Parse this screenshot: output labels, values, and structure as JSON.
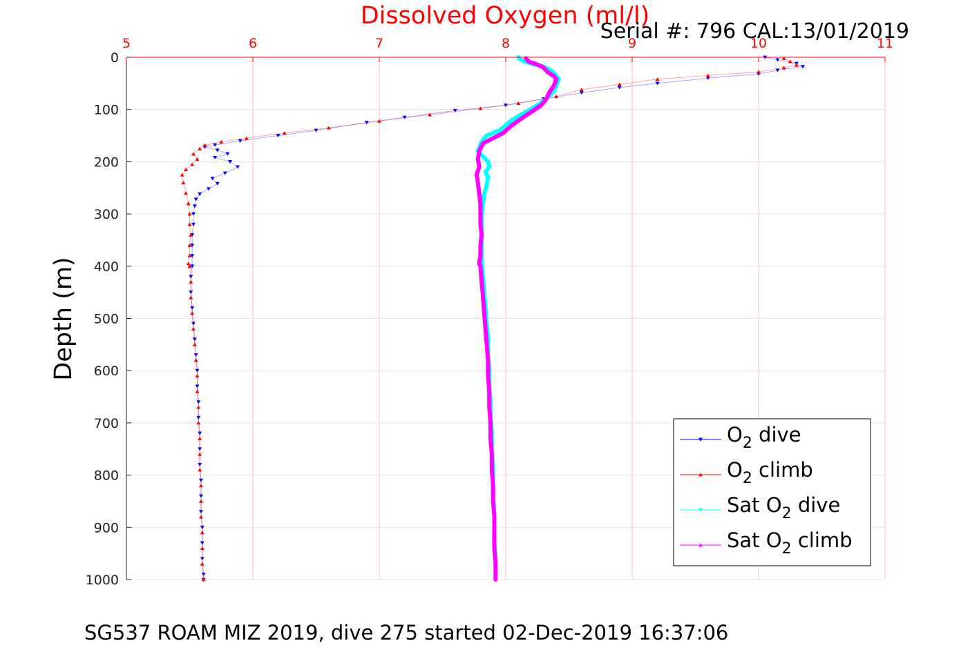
{
  "chart_data": {
    "type": "scatter",
    "title": "Dissolved Oxygen (ml/l)",
    "subtitle": "Serial #: 796  CAL:13/01/2019",
    "xlabel": "",
    "ylabel": "Depth (m)",
    "caption": "SG537 ROAM MIZ 2019, dive 275 started 02-Dec-2019 16:37:06",
    "xlim": [
      5,
      11
    ],
    "ylim": [
      1000,
      0
    ],
    "x_ticks": [
      "5",
      "6",
      "7",
      "8",
      "9",
      "10",
      "11"
    ],
    "y_ticks": [
      "0",
      "100",
      "200",
      "300",
      "400",
      "500",
      "600",
      "700",
      "800",
      "900",
      "1000"
    ],
    "x_axis_location": "top",
    "y_reversed": true,
    "grid": true,
    "legend_position": "bottom-right",
    "series": [
      {
        "label_text": "O",
        "label_sub": "2",
        "label_suffix": " dive",
        "color": "#0000ff",
        "marker": "down-triangle",
        "points": [
          [
            10.05,
            0
          ],
          [
            10.15,
            5
          ],
          [
            10.3,
            12
          ],
          [
            10.35,
            18
          ],
          [
            10.15,
            25
          ],
          [
            10.0,
            32
          ],
          [
            9.6,
            40
          ],
          [
            9.2,
            50
          ],
          [
            8.9,
            58
          ],
          [
            8.6,
            68
          ],
          [
            8.3,
            80
          ],
          [
            8.0,
            92
          ],
          [
            7.6,
            102
          ],
          [
            7.2,
            115
          ],
          [
            6.9,
            125
          ],
          [
            6.5,
            140
          ],
          [
            6.2,
            150
          ],
          [
            5.9,
            160
          ],
          [
            5.7,
            168
          ],
          [
            5.62,
            172
          ],
          [
            5.72,
            178
          ],
          [
            5.8,
            185
          ],
          [
            5.7,
            192
          ],
          [
            5.82,
            200
          ],
          [
            5.88,
            210
          ],
          [
            5.78,
            222
          ],
          [
            5.68,
            232
          ],
          [
            5.72,
            242
          ],
          [
            5.65,
            252
          ],
          [
            5.58,
            262
          ],
          [
            5.55,
            272
          ],
          [
            5.54,
            285
          ],
          [
            5.53,
            300
          ],
          [
            5.53,
            320
          ],
          [
            5.52,
            340
          ],
          [
            5.52,
            360
          ],
          [
            5.52,
            380
          ],
          [
            5.52,
            400
          ],
          [
            5.51,
            420
          ],
          [
            5.51,
            450
          ],
          [
            5.52,
            480
          ],
          [
            5.53,
            510
          ],
          [
            5.54,
            540
          ],
          [
            5.55,
            570
          ],
          [
            5.56,
            600
          ],
          [
            5.56,
            630
          ],
          [
            5.57,
            660
          ],
          [
            5.57,
            690
          ],
          [
            5.58,
            720
          ],
          [
            5.58,
            750
          ],
          [
            5.58,
            780
          ],
          [
            5.59,
            810
          ],
          [
            5.59,
            840
          ],
          [
            5.59,
            870
          ],
          [
            5.6,
            900
          ],
          [
            5.6,
            930
          ],
          [
            5.6,
            960
          ],
          [
            5.61,
            990
          ],
          [
            5.61,
            1000
          ]
        ]
      },
      {
        "label_text": "O",
        "label_sub": "2",
        "label_suffix": " climb",
        "color": "#ff0000",
        "marker": "up-triangle",
        "points": [
          [
            5.61,
            1000
          ],
          [
            5.6,
            970
          ],
          [
            5.6,
            940
          ],
          [
            5.6,
            910
          ],
          [
            5.59,
            880
          ],
          [
            5.59,
            850
          ],
          [
            5.59,
            820
          ],
          [
            5.58,
            790
          ],
          [
            5.58,
            760
          ],
          [
            5.58,
            730
          ],
          [
            5.57,
            700
          ],
          [
            5.57,
            670
          ],
          [
            5.56,
            640
          ],
          [
            5.56,
            610
          ],
          [
            5.55,
            580
          ],
          [
            5.54,
            550
          ],
          [
            5.53,
            520
          ],
          [
            5.52,
            490
          ],
          [
            5.51,
            460
          ],
          [
            5.51,
            430
          ],
          [
            5.5,
            400
          ],
          [
            5.49,
            395
          ],
          [
            5.5,
            380
          ],
          [
            5.5,
            360
          ],
          [
            5.51,
            340
          ],
          [
            5.5,
            320
          ],
          [
            5.5,
            300
          ],
          [
            5.49,
            280
          ],
          [
            5.47,
            260
          ],
          [
            5.45,
            240
          ],
          [
            5.44,
            225
          ],
          [
            5.47,
            215
          ],
          [
            5.52,
            205
          ],
          [
            5.56,
            195
          ],
          [
            5.53,
            185
          ],
          [
            5.58,
            175
          ],
          [
            5.62,
            168
          ],
          [
            5.75,
            162
          ],
          [
            5.95,
            155
          ],
          [
            6.25,
            145
          ],
          [
            6.6,
            135
          ],
          [
            7.0,
            122
          ],
          [
            7.4,
            110
          ],
          [
            7.8,
            98
          ],
          [
            8.1,
            88
          ],
          [
            8.4,
            75
          ],
          [
            8.6,
            62
          ],
          [
            8.9,
            52
          ],
          [
            9.2,
            42
          ],
          [
            9.6,
            35
          ],
          [
            10.0,
            28
          ],
          [
            10.2,
            20
          ],
          [
            10.3,
            15
          ],
          [
            10.25,
            8
          ],
          [
            10.2,
            2
          ]
        ]
      },
      {
        "label_text": "Sat O",
        "label_sub": "2",
        "label_suffix": " dive",
        "color": "#00ffff",
        "marker": "down-triangle",
        "points": [
          [
            8.1,
            0
          ],
          [
            8.12,
            5
          ],
          [
            8.2,
            12
          ],
          [
            8.3,
            18
          ],
          [
            8.35,
            24
          ],
          [
            8.38,
            30
          ],
          [
            8.4,
            36
          ],
          [
            8.42,
            42
          ],
          [
            8.4,
            55
          ],
          [
            8.38,
            65
          ],
          [
            8.32,
            80
          ],
          [
            8.25,
            92
          ],
          [
            8.18,
            102
          ],
          [
            8.12,
            110
          ],
          [
            8.05,
            120
          ],
          [
            8.0,
            130
          ],
          [
            7.95,
            140
          ],
          [
            7.85,
            150
          ],
          [
            7.82,
            158
          ],
          [
            7.8,
            168
          ],
          [
            7.78,
            180
          ],
          [
            7.82,
            190
          ],
          [
            7.86,
            200
          ],
          [
            7.87,
            210
          ],
          [
            7.84,
            220
          ],
          [
            7.86,
            230
          ],
          [
            7.85,
            245
          ],
          [
            7.83,
            262
          ],
          [
            7.82,
            280
          ],
          [
            7.81,
            300
          ],
          [
            7.81,
            330
          ],
          [
            7.81,
            360
          ],
          [
            7.81,
            390
          ],
          [
            7.82,
            420
          ],
          [
            7.83,
            450
          ],
          [
            7.84,
            480
          ],
          [
            7.85,
            510
          ],
          [
            7.86,
            540
          ],
          [
            7.86,
            570
          ],
          [
            7.87,
            600
          ],
          [
            7.87,
            630
          ],
          [
            7.88,
            660
          ],
          [
            7.88,
            690
          ],
          [
            7.89,
            720
          ],
          [
            7.89,
            750
          ],
          [
            7.9,
            780
          ],
          [
            7.9,
            810
          ],
          [
            7.9,
            840
          ],
          [
            7.91,
            870
          ],
          [
            7.91,
            900
          ],
          [
            7.91,
            930
          ],
          [
            7.92,
            960
          ],
          [
            7.92,
            990
          ],
          [
            7.92,
            1000
          ]
        ]
      },
      {
        "label_text": "Sat O",
        "label_sub": "2",
        "label_suffix": " climb",
        "color": "#ff00ff",
        "marker": "up-triangle",
        "points": [
          [
            7.92,
            1000
          ],
          [
            7.92,
            970
          ],
          [
            7.91,
            940
          ],
          [
            7.91,
            910
          ],
          [
            7.91,
            880
          ],
          [
            7.9,
            850
          ],
          [
            7.9,
            820
          ],
          [
            7.89,
            790
          ],
          [
            7.89,
            760
          ],
          [
            7.88,
            730
          ],
          [
            7.88,
            700
          ],
          [
            7.87,
            670
          ],
          [
            7.87,
            640
          ],
          [
            7.86,
            610
          ],
          [
            7.86,
            580
          ],
          [
            7.85,
            550
          ],
          [
            7.84,
            520
          ],
          [
            7.83,
            490
          ],
          [
            7.82,
            460
          ],
          [
            7.81,
            430
          ],
          [
            7.8,
            400
          ],
          [
            7.79,
            395
          ],
          [
            7.8,
            380
          ],
          [
            7.8,
            360
          ],
          [
            7.81,
            340
          ],
          [
            7.8,
            320
          ],
          [
            7.8,
            300
          ],
          [
            7.8,
            280
          ],
          [
            7.79,
            260
          ],
          [
            7.78,
            240
          ],
          [
            7.77,
            225
          ],
          [
            7.79,
            210
          ],
          [
            7.78,
            195
          ],
          [
            7.79,
            180
          ],
          [
            7.82,
            165
          ],
          [
            7.9,
            155
          ],
          [
            7.98,
            145
          ],
          [
            8.05,
            130
          ],
          [
            8.12,
            118
          ],
          [
            8.2,
            105
          ],
          [
            8.28,
            92
          ],
          [
            8.32,
            80
          ],
          [
            8.35,
            65
          ],
          [
            8.38,
            55
          ],
          [
            8.4,
            42
          ],
          [
            8.38,
            36
          ],
          [
            8.33,
            28
          ],
          [
            8.3,
            20
          ],
          [
            8.25,
            14
          ],
          [
            8.18,
            8
          ],
          [
            8.16,
            2
          ]
        ]
      }
    ]
  }
}
